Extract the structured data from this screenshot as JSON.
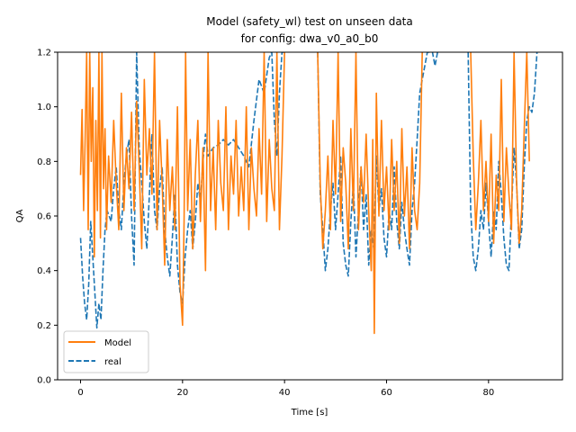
{
  "chart_data": {
    "type": "line",
    "title_line1": "Model (safety_wl) test on unseen data",
    "title_line2": "for config: dwa_v0_a0_b0",
    "xlabel": "Time [s]",
    "ylabel": "QA",
    "xlim": [
      -4.5,
      94.5
    ],
    "ylim": [
      0.0,
      1.2
    ],
    "x_ticks": [
      0,
      20,
      40,
      60,
      80
    ],
    "y_ticks": [
      0.0,
      0.2,
      0.4,
      0.6,
      0.8,
      1.0,
      1.2
    ],
    "x_tick_labels": [
      "0",
      "20",
      "40",
      "60",
      "80"
    ],
    "y_tick_labels": [
      "0.0",
      "0.2",
      "0.4",
      "0.6",
      "0.8",
      "1.0",
      "1.2"
    ],
    "grid": false,
    "legend_position": "lower-left",
    "series": [
      {
        "name": "Model",
        "color": "#ff7f0e",
        "style": "solid",
        "x": [
          0.0,
          0.3,
          0.6,
          0.9,
          1.2,
          1.5,
          1.8,
          2.1,
          2.4,
          2.7,
          3.0,
          3.3,
          3.6,
          3.9,
          4.2,
          4.5,
          4.8,
          5.1,
          5.5,
          6.0,
          6.5,
          7.0,
          7.5,
          8.0,
          8.5,
          9.0,
          9.5,
          10.0,
          10.5,
          11.0,
          11.5,
          12.0,
          12.5,
          13.0,
          13.5,
          14.0,
          14.5,
          15.0,
          15.5,
          16.0,
          16.5,
          17.0,
          17.5,
          18.0,
          18.5,
          19.0,
          19.5,
          20.0,
          20.3,
          20.6,
          21.0,
          21.5,
          22.0,
          22.5,
          23.0,
          23.5,
          24.0,
          24.5,
          25.0,
          25.5,
          26.0,
          26.5,
          27.0,
          27.5,
          28.0,
          28.5,
          29.0,
          29.5,
          30.0,
          30.5,
          31.0,
          31.5,
          32.0,
          32.5,
          33.0,
          33.5,
          34.0,
          34.5,
          35.0,
          35.5,
          36.0,
          36.5,
          37.0,
          37.5,
          38.0,
          38.5,
          39.0,
          39.5,
          40.0,
          null,
          46.5,
          47.0,
          47.5,
          48.0,
          48.5,
          49.0,
          49.5,
          50.0,
          50.5,
          51.0,
          51.5,
          52.0,
          52.5,
          53.0,
          53.5,
          54.0,
          54.5,
          55.0,
          55.5,
          56.0,
          56.5,
          57.0,
          57.3,
          57.6,
          58.0,
          58.5,
          59.0,
          59.5,
          60.0,
          60.5,
          61.0,
          61.5,
          62.0,
          62.5,
          63.0,
          63.5,
          64.0,
          64.5,
          65.0,
          65.5,
          66.0,
          66.5,
          67.0,
          null,
          76.5,
          77.0,
          77.5,
          78.0,
          78.5,
          79.0,
          79.5,
          80.0,
          80.5,
          81.0,
          81.5,
          82.0,
          82.5,
          83.0,
          83.5,
          84.0,
          84.5,
          85.0,
          85.5,
          86.0,
          86.5,
          87.0,
          87.5,
          88.0
        ],
        "y": [
          0.75,
          0.99,
          0.62,
          0.88,
          1.2,
          0.55,
          1.2,
          0.8,
          1.07,
          0.45,
          0.95,
          0.62,
          1.2,
          0.52,
          1.2,
          0.7,
          0.92,
          0.55,
          0.82,
          0.65,
          0.95,
          0.72,
          0.55,
          1.05,
          0.62,
          0.85,
          0.7,
          0.98,
          0.62,
          1.02,
          0.78,
          0.48,
          1.1,
          0.75,
          0.92,
          0.68,
          1.2,
          0.55,
          0.95,
          0.72,
          0.42,
          0.88,
          0.62,
          0.78,
          0.55,
          1.0,
          0.35,
          0.2,
          0.58,
          1.2,
          0.62,
          0.88,
          0.48,
          0.75,
          0.95,
          0.58,
          0.85,
          0.4,
          1.2,
          0.62,
          0.85,
          0.55,
          0.95,
          0.72,
          0.62,
          1.0,
          0.55,
          0.82,
          0.68,
          0.95,
          0.6,
          0.78,
          0.62,
          1.0,
          0.55,
          0.85,
          0.7,
          0.6,
          0.92,
          0.68,
          1.2,
          0.58,
          0.88,
          0.7,
          0.62,
          1.2,
          0.55,
          0.82,
          1.2,
          null,
          1.2,
          0.72,
          0.48,
          0.62,
          0.82,
          0.55,
          0.95,
          0.68,
          1.2,
          0.58,
          0.85,
          0.72,
          0.48,
          0.92,
          0.62,
          1.2,
          0.55,
          0.78,
          0.65,
          0.9,
          0.62,
          0.4,
          0.88,
          0.17,
          1.05,
          0.6,
          0.95,
          0.62,
          0.78,
          0.55,
          0.88,
          0.62,
          0.8,
          0.5,
          0.92,
          0.6,
          0.78,
          0.48,
          0.85,
          0.62,
          0.55,
          0.72,
          1.2,
          null,
          1.2,
          0.82,
          0.55,
          0.72,
          0.95,
          0.62,
          0.8,
          0.58,
          0.9,
          0.5,
          0.75,
          0.62,
          1.1,
          0.58,
          0.85,
          0.68,
          0.55,
          1.2,
          0.72,
          0.5,
          0.62,
          0.92,
          1.2,
          0.8
        ]
      },
      {
        "name": "real",
        "color": "#1f77b4",
        "style": "dashed",
        "x": [
          0.0,
          0.4,
          0.8,
          1.2,
          1.6,
          2.0,
          2.4,
          2.8,
          3.2,
          3.6,
          4.0,
          4.4,
          4.8,
          5.2,
          5.6,
          6.0,
          6.5,
          7.0,
          7.5,
          8.0,
          8.5,
          9.0,
          9.5,
          10.0,
          10.5,
          11.0,
          11.5,
          12.0,
          12.5,
          13.0,
          13.5,
          14.0,
          14.5,
          15.0,
          15.5,
          16.0,
          16.5,
          17.0,
          17.5,
          18.0,
          18.5,
          19.0,
          19.5,
          20.0,
          20.5,
          21.0,
          21.5,
          22.0,
          22.5,
          23.0,
          23.5,
          24.0,
          24.5,
          25.0,
          26.0,
          27.0,
          28.0,
          29.0,
          30.0,
          31.0,
          32.0,
          33.0,
          34.0,
          35.0,
          36.0,
          37.0,
          37.5,
          38.0,
          38.5,
          39.0,
          39.5,
          40.0,
          null,
          46.5,
          47.0,
          47.5,
          48.0,
          48.5,
          49.0,
          49.5,
          50.0,
          50.5,
          51.0,
          51.5,
          52.0,
          52.5,
          53.0,
          53.5,
          54.0,
          54.5,
          55.0,
          55.5,
          56.0,
          56.5,
          57.0,
          57.5,
          58.0,
          58.5,
          59.0,
          59.5,
          60.0,
          60.5,
          61.0,
          61.5,
          62.0,
          62.5,
          63.0,
          63.5,
          64.0,
          64.5,
          65.0,
          65.5,
          66.0,
          66.5,
          67.0,
          67.5,
          68.0,
          68.5,
          69.0,
          69.5,
          70.0,
          null,
          76.0,
          76.5,
          77.0,
          77.5,
          78.0,
          78.5,
          79.0,
          79.5,
          80.0,
          80.5,
          81.0,
          81.5,
          82.0,
          82.5,
          83.0,
          83.5,
          84.0,
          84.5,
          85.0,
          85.5,
          86.0,
          86.5,
          87.0,
          87.5,
          88.0,
          88.5,
          89.0,
          89.5
        ],
        "y": [
          0.52,
          0.38,
          0.28,
          0.22,
          0.35,
          0.58,
          0.45,
          0.32,
          0.19,
          0.28,
          0.22,
          0.4,
          0.55,
          0.62,
          0.6,
          0.58,
          0.7,
          0.78,
          0.62,
          0.55,
          0.72,
          0.82,
          0.88,
          0.6,
          0.42,
          1.2,
          0.85,
          0.72,
          0.58,
          0.48,
          0.68,
          0.9,
          0.62,
          0.55,
          0.7,
          0.78,
          0.55,
          0.45,
          0.38,
          0.52,
          0.68,
          0.42,
          0.32,
          0.28,
          0.45,
          0.55,
          0.62,
          0.48,
          0.58,
          0.72,
          0.65,
          0.8,
          0.9,
          0.82,
          0.85,
          0.86,
          0.88,
          0.86,
          0.88,
          0.85,
          0.82,
          0.78,
          0.95,
          1.1,
          1.05,
          1.18,
          1.2,
          0.95,
          0.82,
          1.05,
          1.2,
          1.2,
          null,
          1.2,
          0.68,
          0.55,
          0.4,
          0.48,
          0.62,
          0.72,
          0.55,
          0.68,
          0.82,
          0.5,
          0.42,
          0.38,
          0.58,
          0.72,
          0.45,
          0.62,
          0.78,
          0.55,
          0.68,
          0.42,
          0.55,
          0.48,
          0.82,
          0.62,
          0.7,
          0.52,
          0.45,
          0.62,
          0.55,
          0.78,
          0.58,
          0.48,
          0.65,
          0.55,
          0.48,
          0.42,
          0.62,
          0.72,
          0.88,
          1.05,
          1.1,
          1.15,
          1.2,
          1.2,
          1.2,
          1.15,
          1.2,
          null,
          1.2,
          0.62,
          0.45,
          0.4,
          0.48,
          0.62,
          0.55,
          0.72,
          0.58,
          0.45,
          0.62,
          0.55,
          0.8,
          0.68,
          0.52,
          0.42,
          0.4,
          0.62,
          0.85,
          0.72,
          0.48,
          0.55,
          0.78,
          0.95,
          1.0,
          0.98,
          1.05,
          1.2
        ]
      }
    ]
  }
}
